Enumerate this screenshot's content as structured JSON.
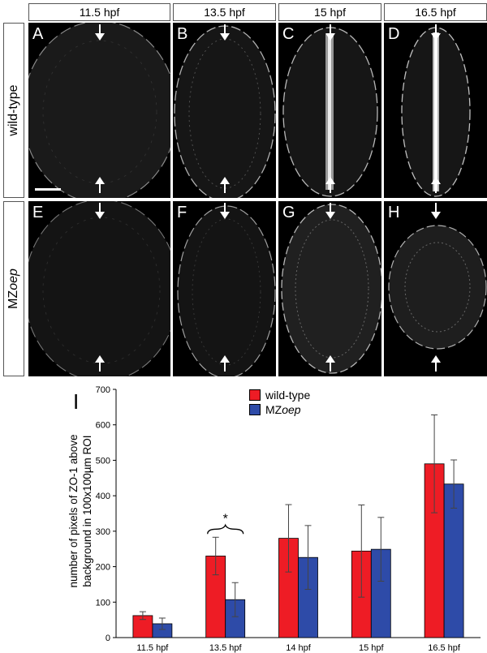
{
  "column_headers": [
    "11.5 hpf",
    "13.5 hpf",
    "15 hpf",
    "16.5 hpf"
  ],
  "row_headers": {
    "wildtype": "wild-type",
    "mzoep_prefix": "MZ",
    "mzoep_italic": "oep"
  },
  "panel_letters": {
    "top": [
      "A",
      "B",
      "C",
      "D"
    ],
    "bottom": [
      "E",
      "F",
      "G",
      "H"
    ]
  },
  "chart_panel_letter": "I",
  "chart_data": {
    "type": "bar",
    "categories": [
      "11.5 hpf",
      "13.5 hpf",
      "14 hpf",
      "15 hpf",
      "16.5 hpf"
    ],
    "series": [
      {
        "name": "wild-type",
        "color": "#ee1c25",
        "values": [
          62,
          230,
          280,
          244,
          490
        ],
        "errors": [
          11,
          53,
          95,
          130,
          138
        ]
      },
      {
        "name": "MZoep",
        "color": "#2e4ba8",
        "values": [
          39,
          107,
          226,
          249,
          433
        ],
        "errors": [
          16,
          48,
          90,
          90,
          68
        ]
      }
    ],
    "ylabel_line1": "number of pixels of ZO-1 above",
    "ylabel_line2": "background in 100x100µm ROI",
    "ylim": [
      0,
      700
    ],
    "yticks": [
      "0",
      "100",
      "200",
      "300",
      "400",
      "500",
      "600",
      "700"
    ],
    "legend_series1": "wild-type",
    "legend_series2_prefix": "MZ",
    "legend_series2_italic": "oep",
    "significance_marker": "*",
    "legend_position": "top-center"
  },
  "colors": {
    "wildtype": "#ee1c25",
    "mzoep": "#2e4ba8",
    "panel_background": "#000000",
    "cell_outline": "#bfbfbf"
  }
}
